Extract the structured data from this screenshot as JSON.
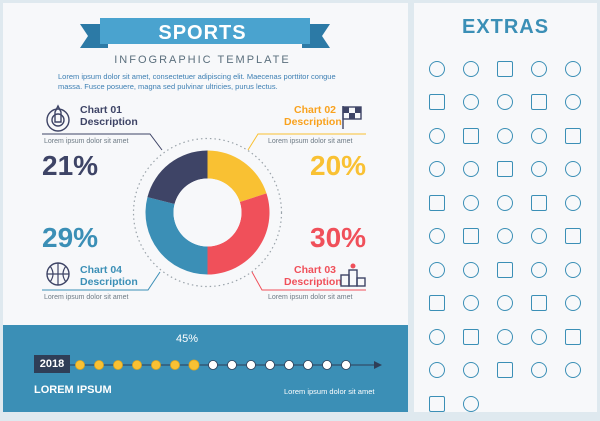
{
  "title": "SPORTS",
  "subtitle": "INFOGRAPHIC TEMPLATE",
  "intro": "Lorem ipsum dolor sit amet, consectetuer adipiscing elit. Maecenas porttitor congue massa. Fusce posuere, magna sed pulvinar ultricies, purus lectus.",
  "charts": [
    {
      "label": "Chart 01",
      "desc": "Description",
      "small": "Lorem ipsum dolor sit amet",
      "percent": "21%",
      "value": 21,
      "color": "#3e4466"
    },
    {
      "label": "Chart 02",
      "desc": "Description",
      "small": "Lorem ipsum dolor sit amet",
      "percent": "20%",
      "value": 20,
      "color": "#f9c133"
    },
    {
      "label": "Chart 03",
      "desc": "Description",
      "small": "Lorem ipsum dolor sit amet",
      "percent": "30%",
      "value": 30,
      "color": "#f0505a"
    },
    {
      "label": "Chart 04",
      "desc": "Description",
      "small": "Lorem ipsum dolor sit amet",
      "percent": "29%",
      "value": 29,
      "color": "#3b8fb6"
    }
  ],
  "timeline": {
    "year": "2018",
    "progress_label": "45%",
    "progress": 45,
    "footer_left": "LOREM IPSUM",
    "footer_right": "Lorem ipsum dolor sit amet"
  },
  "extras_title": "EXTRAS",
  "icons": [
    "stopwatch-icon",
    "volleyball-icon",
    "football-field-icon",
    "basketball-court-icon",
    "windsurf-icon",
    "figure-skating-icon",
    "exercise-bike-icon",
    "tennis-racket-icon",
    "net-icon",
    "pool-ladder-icon",
    "swimming-pool-icon",
    "cheerleader-icon",
    "skateboarder-icon",
    "baseball-icon",
    "climbing-icon",
    "ping-pong-icon",
    "basketball-player-icon",
    "cycling-icon",
    "fencing-icon",
    "podium-icon",
    "surfing-icon",
    "runner-icon",
    "bicycle-icon",
    "basketball-icon",
    "billiard-ball-icon",
    "swimmer-icon",
    "soccer-player-icon",
    "bike-icon",
    "soccer-ball-icon",
    "checkered-flag-icon",
    "surfboard-icon",
    "martial-arts-icon",
    "motorbike-icon",
    "rugby-field-icon",
    "table-tennis-icon",
    "swimming-icon",
    "golfer-icon",
    "roller-skate-icon",
    "hockey-stick-icon",
    "badminton-icon",
    "basketball-hoop-icon",
    "pull-up-bar-icon",
    "cyclist-icon",
    "trophy-icon",
    "archery-target-icon",
    "ski-icon",
    "bodybuilder-icon",
    "medical-clipboard-icon",
    "american-football-icon",
    "bowling-icon",
    "kayak-icon",
    "rowing-icon"
  ]
}
